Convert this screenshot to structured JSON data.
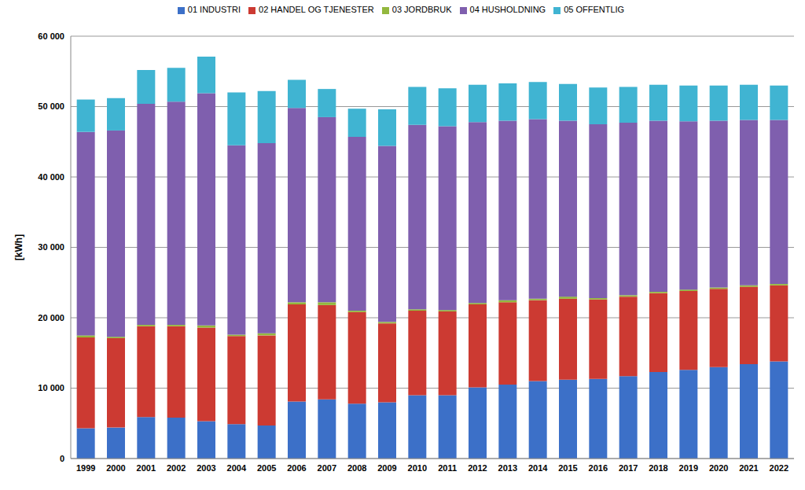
{
  "chart_data": {
    "type": "bar",
    "stacked": true,
    "grid": true,
    "legend": "top",
    "y_label": "[kWh]",
    "categories": [
      "1999",
      "2000",
      "2001",
      "2002",
      "2003",
      "2004",
      "2005",
      "2006",
      "2007",
      "2008",
      "2009",
      "2010",
      "2011",
      "2012",
      "2013",
      "2014",
      "2015",
      "2016",
      "2017",
      "2018",
      "2019",
      "2020",
      "2021",
      "2022"
    ],
    "ylim": [
      0,
      60000
    ],
    "yticks": [
      0,
      {
        "value": 10000,
        "label": "10 000"
      },
      {
        "value": 20000,
        "label": "20 000"
      },
      {
        "value": 30000,
        "label": "30 000"
      },
      {
        "value": 40000,
        "label": "40 000"
      },
      {
        "value": 50000,
        "label": "50 000"
      },
      {
        "value": 60000,
        "label": "60 000"
      }
    ],
    "series": [
      {
        "name": "01 INDUSTRI",
        "color": "#3c70c8",
        "values": [
          4300,
          4400,
          5900,
          5800,
          5300,
          4900,
          4700,
          8100,
          8400,
          7800,
          8000,
          9000,
          9000,
          10100,
          10500,
          11000,
          11200,
          11300,
          11700,
          12300,
          12600,
          13000,
          13400,
          13800
        ]
      },
      {
        "name": "02 HANDEL OG TJENESTER",
        "color": "#cc3a32",
        "values": [
          12900,
          12700,
          12900,
          13000,
          13300,
          12500,
          12800,
          13800,
          13400,
          13000,
          11200,
          12000,
          11900,
          11800,
          11700,
          11500,
          11500,
          11300,
          11300,
          11200,
          11200,
          11100,
          11000,
          10800
        ]
      },
      {
        "name": "03 JORDBRUK",
        "color": "#93b83e",
        "values": [
          300,
          200,
          200,
          200,
          300,
          200,
          300,
          300,
          400,
          200,
          200,
          200,
          200,
          200,
          300,
          200,
          300,
          200,
          200,
          200,
          200,
          200,
          200,
          200
        ]
      },
      {
        "name": "04 HUSHOLDNING",
        "color": "#7f5fae",
        "values": [
          28900,
          29300,
          31400,
          31700,
          33000,
          26900,
          27000,
          27600,
          26300,
          24700,
          25000,
          26200,
          26100,
          25700,
          25500,
          25500,
          25000,
          24700,
          24500,
          24300,
          23900,
          23700,
          23500,
          23300
        ]
      },
      {
        "name": "05 OFFENTLIG",
        "color": "#40b4d2",
        "values": [
          4600,
          4600,
          4800,
          4800,
          5200,
          7500,
          7400,
          4000,
          4000,
          4000,
          5200,
          5400,
          5400,
          5300,
          5300,
          5300,
          5200,
          5200,
          5100,
          5100,
          5100,
          5000,
          5000,
          4900
        ]
      }
    ]
  }
}
